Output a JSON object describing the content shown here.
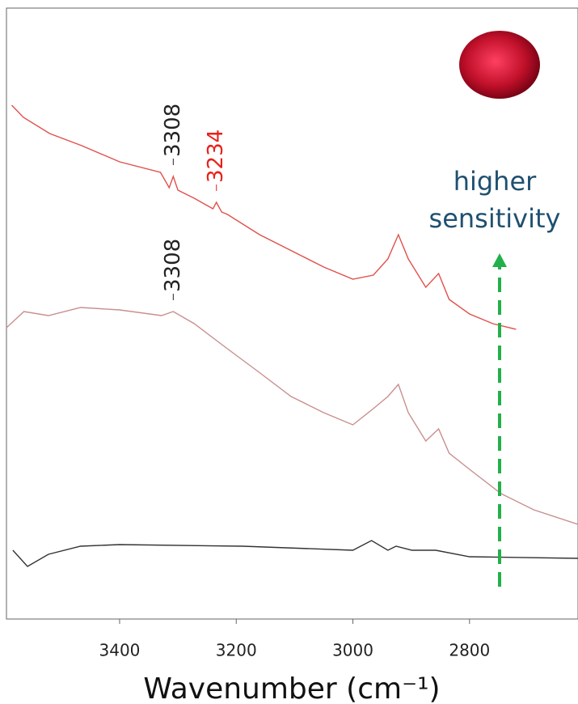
{
  "chart_data": {
    "type": "line",
    "x_label": "Wavenumber (cm⁻¹)",
    "xlim": [
      3594,
      2614
    ],
    "xticks": [
      3400,
      3200,
      3000,
      2800
    ],
    "ylim": [
      0,
      755
    ],
    "series": [
      {
        "color": "#e0504a",
        "x": [
          3585,
          3565,
          3520,
          3465,
          3400,
          3330,
          3315,
          3308,
          3300,
          3272,
          3240,
          3234,
          3225,
          3215,
          3160,
          3105,
          3050,
          3000,
          2965,
          2940,
          2922,
          2905,
          2875,
          2853,
          2835,
          2800,
          2760,
          2720
        ],
        "values": [
          635,
          620,
          600,
          585,
          565,
          552,
          533,
          547,
          530,
          520,
          507,
          515,
          503,
          500,
          475,
          455,
          435,
          420,
          425,
          445,
          475,
          445,
          410,
          427,
          395,
          377,
          365,
          358
        ]
      },
      {
        "color": "#c98f8f",
        "x": [
          3594,
          3564,
          3522,
          3467,
          3400,
          3328,
          3308,
          3272,
          3217,
          3161,
          3106,
          3050,
          3000,
          2965,
          2940,
          2922,
          2905,
          2875,
          2853,
          2835,
          2800,
          2746,
          2690,
          2614
        ],
        "values": [
          360,
          380,
          375,
          385,
          382,
          375,
          380,
          365,
          335,
          305,
          275,
          255,
          240,
          260,
          275,
          290,
          255,
          220,
          235,
          205,
          185,
          155,
          135,
          117
        ]
      },
      {
        "color": "#333333",
        "x": [
          3583,
          3558,
          3522,
          3467,
          3400,
          3189,
          3000,
          2968,
          2940,
          2926,
          2899,
          2858,
          2800,
          2614
        ],
        "values": [
          85,
          65,
          80,
          90,
          92,
          90,
          85,
          97,
          85,
          90,
          85,
          85,
          77,
          75
        ]
      }
    ],
    "annotations": [
      {
        "text": "3308",
        "color": "#222222"
      },
      {
        "text": "3234",
        "color": "#e8201a"
      },
      {
        "text": "3308",
        "color": "#222222"
      }
    ],
    "note": "higher sensitivity",
    "note_color": "#1f5070",
    "arrow_color": "#22b04a"
  }
}
